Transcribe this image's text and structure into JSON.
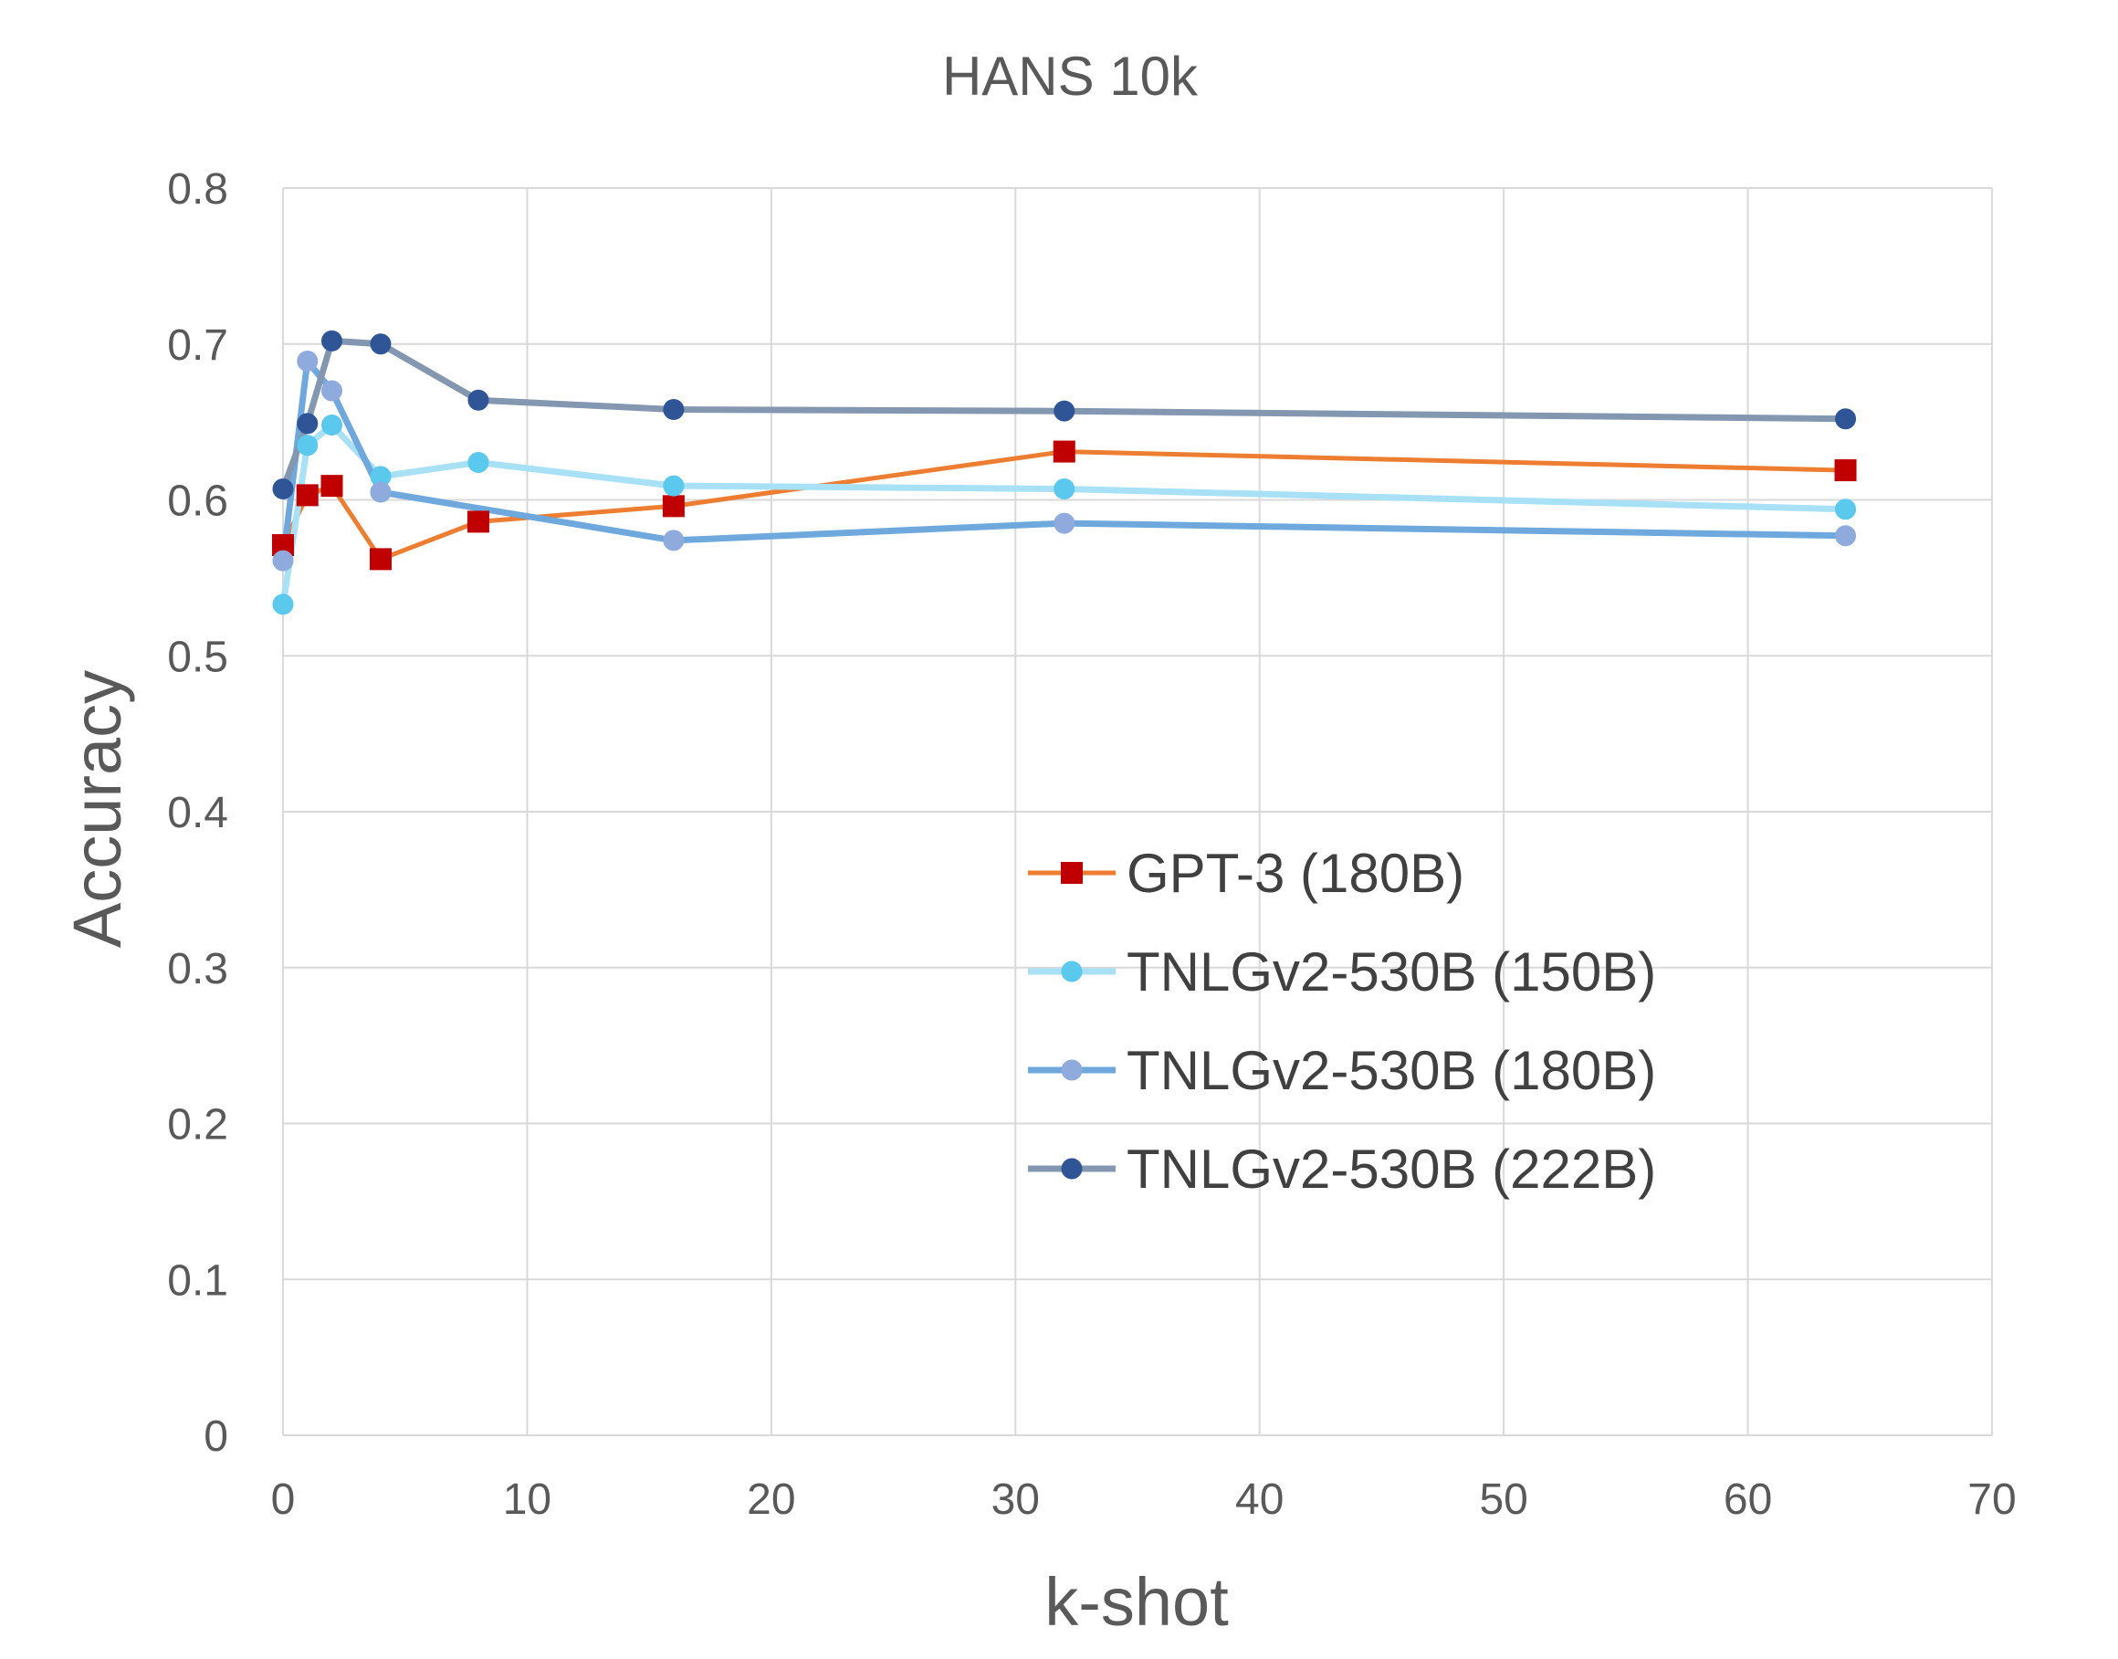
{
  "chart_data": {
    "type": "line",
    "title": "HANS 10k",
    "xlabel": "k-shot",
    "ylabel": "Accuracy",
    "xlim": [
      0,
      70
    ],
    "ylim": [
      0,
      0.8
    ],
    "xticks": [
      "0",
      "10",
      "20",
      "30",
      "40",
      "50",
      "60",
      "70"
    ],
    "yticks": [
      "0",
      "0.1",
      "0.2",
      "0.3",
      "0.4",
      "0.5",
      "0.6",
      "0.7",
      "0.8"
    ],
    "grid": true,
    "legend_position": "center-right",
    "series": [
      {
        "name": "GPT-3 (180B)",
        "color": "#ED7D31",
        "marker_color": "#C00000",
        "marker": "square",
        "x": [
          0,
          1,
          2,
          4,
          8,
          16,
          32,
          64
        ],
        "y": [
          0.571,
          0.603,
          0.609,
          0.562,
          0.586,
          0.596,
          0.631,
          0.619
        ]
      },
      {
        "name": "TNLGv2-530B (150B)",
        "color": "#A8E0F5",
        "marker_color": "#5BC8EE",
        "marker": "circle",
        "x": [
          0,
          1,
          2,
          4,
          8,
          16,
          32,
          64
        ],
        "y": [
          0.533,
          0.635,
          0.648,
          0.615,
          0.624,
          0.609,
          0.607,
          0.594
        ]
      },
      {
        "name": "TNLGv2-530B (180B)",
        "color": "#6FA8DC",
        "marker_color": "#8FAADC",
        "marker": "circle",
        "x": [
          0,
          1,
          2,
          4,
          16,
          32,
          64
        ],
        "y": [
          0.561,
          0.689,
          0.67,
          0.605,
          0.574,
          0.585,
          0.577
        ]
      },
      {
        "name": "TNLGv2-530B (222B)",
        "color": "#8497B0",
        "marker_color": "#2F5597",
        "marker": "circle",
        "x": [
          0,
          1,
          2,
          4,
          8,
          16,
          32,
          64
        ],
        "y": [
          0.607,
          0.649,
          0.702,
          0.7,
          0.664,
          0.658,
          0.657,
          0.652
        ]
      }
    ]
  }
}
